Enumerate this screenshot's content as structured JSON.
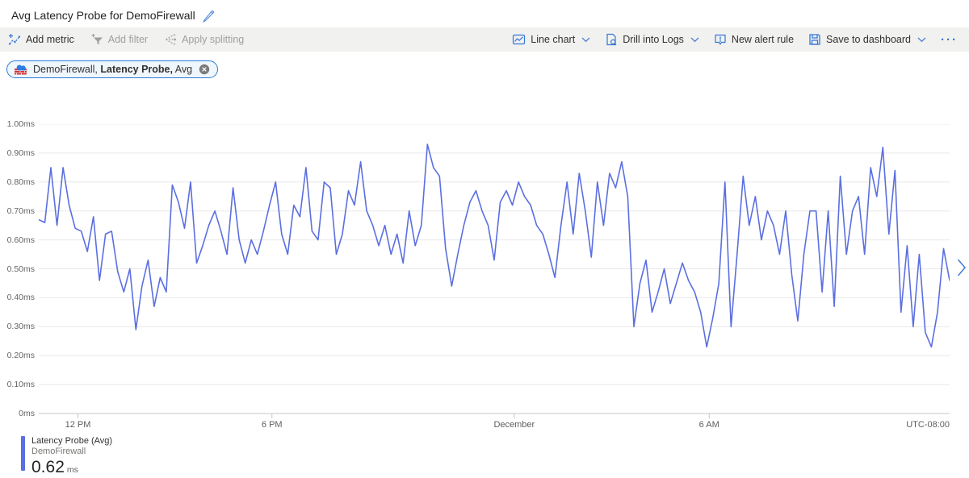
{
  "header": {
    "title": "Avg Latency Probe for DemoFirewall"
  },
  "toolbar": {
    "add_metric": "Add metric",
    "add_filter": "Add filter",
    "apply_splitting": "Apply splitting",
    "chart_type": "Line chart",
    "drill_into_logs": "Drill into Logs",
    "new_alert_rule": "New alert rule",
    "save_to_dashboard": "Save to dashboard",
    "more": "···"
  },
  "metric_pill": {
    "resource": "DemoFirewall,",
    "metric": "Latency Probe,",
    "aggregation": "Avg"
  },
  "colors": {
    "line": "#5b6fe0",
    "toolbar_icon_blue": "#3576d5",
    "pill_border": "#2b7cd9",
    "pill_bg": "#eff6fc",
    "grid": "#e8e8e8",
    "axis_baseline": "#c8c6c4",
    "disabled_text": "#a19f9d",
    "text": "#323130",
    "secondary_text": "#605e5c"
  },
  "icons": {
    "edit": "pencil-icon",
    "add_metric": "sparkline-plus-icon",
    "add_filter": "funnel-plus-icon",
    "apply_splitting": "split-arrows-icon",
    "chart_type": "line-chart-icon",
    "drill_into_logs": "page-magnifier-icon",
    "new_alert_rule": "alert-bubble-icon",
    "save_to_dashboard": "floppy-disk-icon",
    "pill_resource": "firewall-icon",
    "pill_close": "close-circle-icon",
    "dropdown": "chevron-down-icon",
    "pagination": "chevron-right-icon"
  },
  "chart_data": {
    "type": "line",
    "title": "Avg Latency Probe for DemoFirewall",
    "xlabel": "",
    "ylabel": "",
    "unit": "ms",
    "ylim": [
      0,
      1.0
    ],
    "grid": true,
    "legend_position": "bottom-left",
    "y_ticks": [
      "1.00ms",
      "0.90ms",
      "0.80ms",
      "0.70ms",
      "0.60ms",
      "0.50ms",
      "0.40ms",
      "0.30ms",
      "0.20ms",
      "0.10ms",
      "0ms"
    ],
    "x_ticks": [
      {
        "label": "12 PM",
        "pos": 0.043
      },
      {
        "label": "6 PM",
        "pos": 0.256
      },
      {
        "label": "December",
        "pos": 0.522
      },
      {
        "label": "6 AM",
        "pos": 0.736
      }
    ],
    "timezone_label": "UTC-08:00",
    "series": [
      {
        "name": "Latency Probe (Avg)",
        "resource": "DemoFirewall",
        "color": "#5b6fe0",
        "values": [
          0.67,
          0.66,
          0.85,
          0.65,
          0.85,
          0.72,
          0.64,
          0.63,
          0.56,
          0.68,
          0.46,
          0.62,
          0.63,
          0.49,
          0.42,
          0.5,
          0.29,
          0.44,
          0.53,
          0.37,
          0.47,
          0.42,
          0.79,
          0.73,
          0.64,
          0.8,
          0.52,
          0.58,
          0.65,
          0.7,
          0.63,
          0.55,
          0.78,
          0.6,
          0.52,
          0.6,
          0.55,
          0.63,
          0.72,
          0.8,
          0.62,
          0.55,
          0.72,
          0.68,
          0.85,
          0.63,
          0.6,
          0.8,
          0.78,
          0.55,
          0.62,
          0.77,
          0.72,
          0.87,
          0.7,
          0.65,
          0.58,
          0.65,
          0.55,
          0.62,
          0.52,
          0.7,
          0.58,
          0.65,
          0.93,
          0.85,
          0.82,
          0.57,
          0.44,
          0.55,
          0.65,
          0.73,
          0.77,
          0.7,
          0.65,
          0.53,
          0.73,
          0.77,
          0.72,
          0.8,
          0.75,
          0.72,
          0.65,
          0.62,
          0.55,
          0.47,
          0.65,
          0.8,
          0.62,
          0.83,
          0.7,
          0.54,
          0.8,
          0.65,
          0.83,
          0.78,
          0.87,
          0.75,
          0.3,
          0.45,
          0.53,
          0.35,
          0.42,
          0.5,
          0.38,
          0.45,
          0.52,
          0.46,
          0.42,
          0.35,
          0.23,
          0.33,
          0.45,
          0.8,
          0.3,
          0.55,
          0.82,
          0.65,
          0.75,
          0.6,
          0.7,
          0.65,
          0.55,
          0.7,
          0.48,
          0.32,
          0.55,
          0.7,
          0.7,
          0.42,
          0.7,
          0.37,
          0.82,
          0.55,
          0.7,
          0.75,
          0.55,
          0.85,
          0.75,
          0.92,
          0.62,
          0.84,
          0.35,
          0.58,
          0.3,
          0.55,
          0.28,
          0.23,
          0.35,
          0.57,
          0.46
        ]
      }
    ]
  },
  "legend": {
    "series_label": "Latency Probe (Avg)",
    "resource": "DemoFirewall",
    "value": "0.62",
    "unit": "ms"
  }
}
